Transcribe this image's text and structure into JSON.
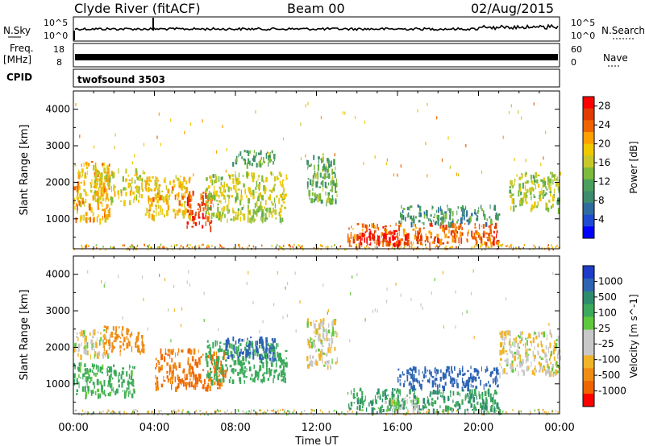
{
  "header": {
    "station": "Clyde River (fitACF)",
    "beam": "Beam 00",
    "date": "02/Aug/2015"
  },
  "params": {
    "nsky_label": "N.Sky",
    "nsearch_label": "N.Search",
    "freq_label_1": "Freq.",
    "freq_label_2": "[MHz]",
    "nave_label": "Nave",
    "cpid_label": "CPID",
    "cpid_value": "twofsound 3503",
    "nsky_ticks_left": [
      "10^5",
      "10^0"
    ],
    "nsearch_ticks_right": [
      "10^5",
      "10^0"
    ],
    "freq_ticks_left": [
      "18",
      "8"
    ],
    "nave_ticks_right": [
      "60",
      "0"
    ]
  },
  "chart_data": [
    {
      "type": "heatmap",
      "title": "",
      "ylabel": "Slant Range [km]",
      "xlabel": "",
      "x_ticks": [
        "00:00",
        "04:00",
        "08:00",
        "12:00",
        "16:00",
        "20:00",
        "00:00"
      ],
      "y_ticks": [
        "1000",
        "2000",
        "3000",
        "4000"
      ],
      "ylim": [
        180,
        4500
      ],
      "xlim_hours": [
        0,
        24
      ],
      "colorbar": {
        "label": "Power [dB]",
        "ticks": [
          "4",
          "8",
          "12",
          "16",
          "20",
          "24",
          "28"
        ],
        "range": [
          0,
          30
        ],
        "colors": [
          "#0000ff",
          "#1e4bd2",
          "#2e6b9e",
          "#3c8c6e",
          "#4aa05a",
          "#7dbb3c",
          "#c8c82a",
          "#f0c800",
          "#ffa000",
          "#f06400",
          "#e03c00",
          "#ff0000"
        ]
      },
      "echo_regions": [
        {
          "t0": 0.0,
          "t1": 1.8,
          "r0": 1000,
          "r1": 2600,
          "level": 20
        },
        {
          "t0": 1.0,
          "t1": 3.5,
          "r0": 1500,
          "r1": 2400,
          "level": 18
        },
        {
          "t0": 3.5,
          "t1": 5.8,
          "r0": 1100,
          "r1": 2200,
          "level": 19
        },
        {
          "t0": 5.5,
          "t1": 6.8,
          "r0": 800,
          "r1": 1800,
          "level": 26
        },
        {
          "t0": 6.5,
          "t1": 10.5,
          "r0": 1000,
          "r1": 2300,
          "level": 16
        },
        {
          "t0": 7.8,
          "t1": 10.0,
          "r0": 2500,
          "r1": 2900,
          "level": 12
        },
        {
          "t0": 11.5,
          "t1": 13.0,
          "r0": 1500,
          "r1": 2800,
          "level": 12
        },
        {
          "t0": 13.5,
          "t1": 21.0,
          "r0": 350,
          "r1": 900,
          "level": 24
        },
        {
          "t0": 14.0,
          "t1": 16.5,
          "r0": 300,
          "r1": 700,
          "level": 29
        },
        {
          "t0": 16.0,
          "t1": 21.0,
          "r0": 900,
          "r1": 1400,
          "level": 10
        },
        {
          "t0": 21.5,
          "t1": 24.0,
          "r0": 1300,
          "r1": 2300,
          "level": 15
        }
      ]
    },
    {
      "type": "heatmap",
      "title": "",
      "ylabel": "Slant Range [km]",
      "xlabel": "Time UT",
      "x_ticks": [
        "00:00",
        "04:00",
        "08:00",
        "12:00",
        "16:00",
        "20:00",
        "00:00"
      ],
      "y_ticks": [
        "1000",
        "2000",
        "3000",
        "4000"
      ],
      "ylim": [
        180,
        4500
      ],
      "xlim_hours": [
        0,
        24
      ],
      "colorbar": {
        "label": "Velocity [m s^-1]",
        "ticks": [
          "1000",
          "500",
          "100",
          "25",
          "-25",
          "-100",
          "-500",
          "-1000"
        ],
        "colors": [
          "#1e3cc8",
          "#2d64b4",
          "#2e8c6e",
          "#3caa5a",
          "#60c83c",
          "#c8c8c8",
          "#c8c8c8",
          "#f0b428",
          "#f08c14",
          "#f06400",
          "#ff0000"
        ]
      },
      "echo_regions": [
        {
          "t0": 0.0,
          "t1": 1.8,
          "r0": 1800,
          "r1": 2500,
          "level": 0
        },
        {
          "t0": 0.0,
          "t1": 3.0,
          "r0": 700,
          "r1": 1600,
          "level": 150
        },
        {
          "t0": 1.5,
          "t1": 3.5,
          "r0": 1900,
          "r1": 2600,
          "level": -200
        },
        {
          "t0": 4.0,
          "t1": 7.5,
          "r0": 900,
          "r1": 2000,
          "level": -300
        },
        {
          "t0": 6.5,
          "t1": 10.5,
          "r0": 1100,
          "r1": 2200,
          "level": 200
        },
        {
          "t0": 7.5,
          "t1": 10.0,
          "r0": 1700,
          "r1": 2300,
          "level": 600
        },
        {
          "t0": 11.5,
          "t1": 13.0,
          "r0": 1500,
          "r1": 2800,
          "level": 0
        },
        {
          "t0": 13.5,
          "t1": 21.0,
          "r0": 300,
          "r1": 900,
          "level": 300
        },
        {
          "t0": 15.0,
          "t1": 17.0,
          "r0": 300,
          "r1": 700,
          "level": 50
        },
        {
          "t0": 16.0,
          "t1": 21.0,
          "r0": 900,
          "r1": 1500,
          "level": 700
        },
        {
          "t0": 21.0,
          "t1": 24.0,
          "r0": 1300,
          "r1": 2500,
          "level": 0
        }
      ]
    }
  ]
}
